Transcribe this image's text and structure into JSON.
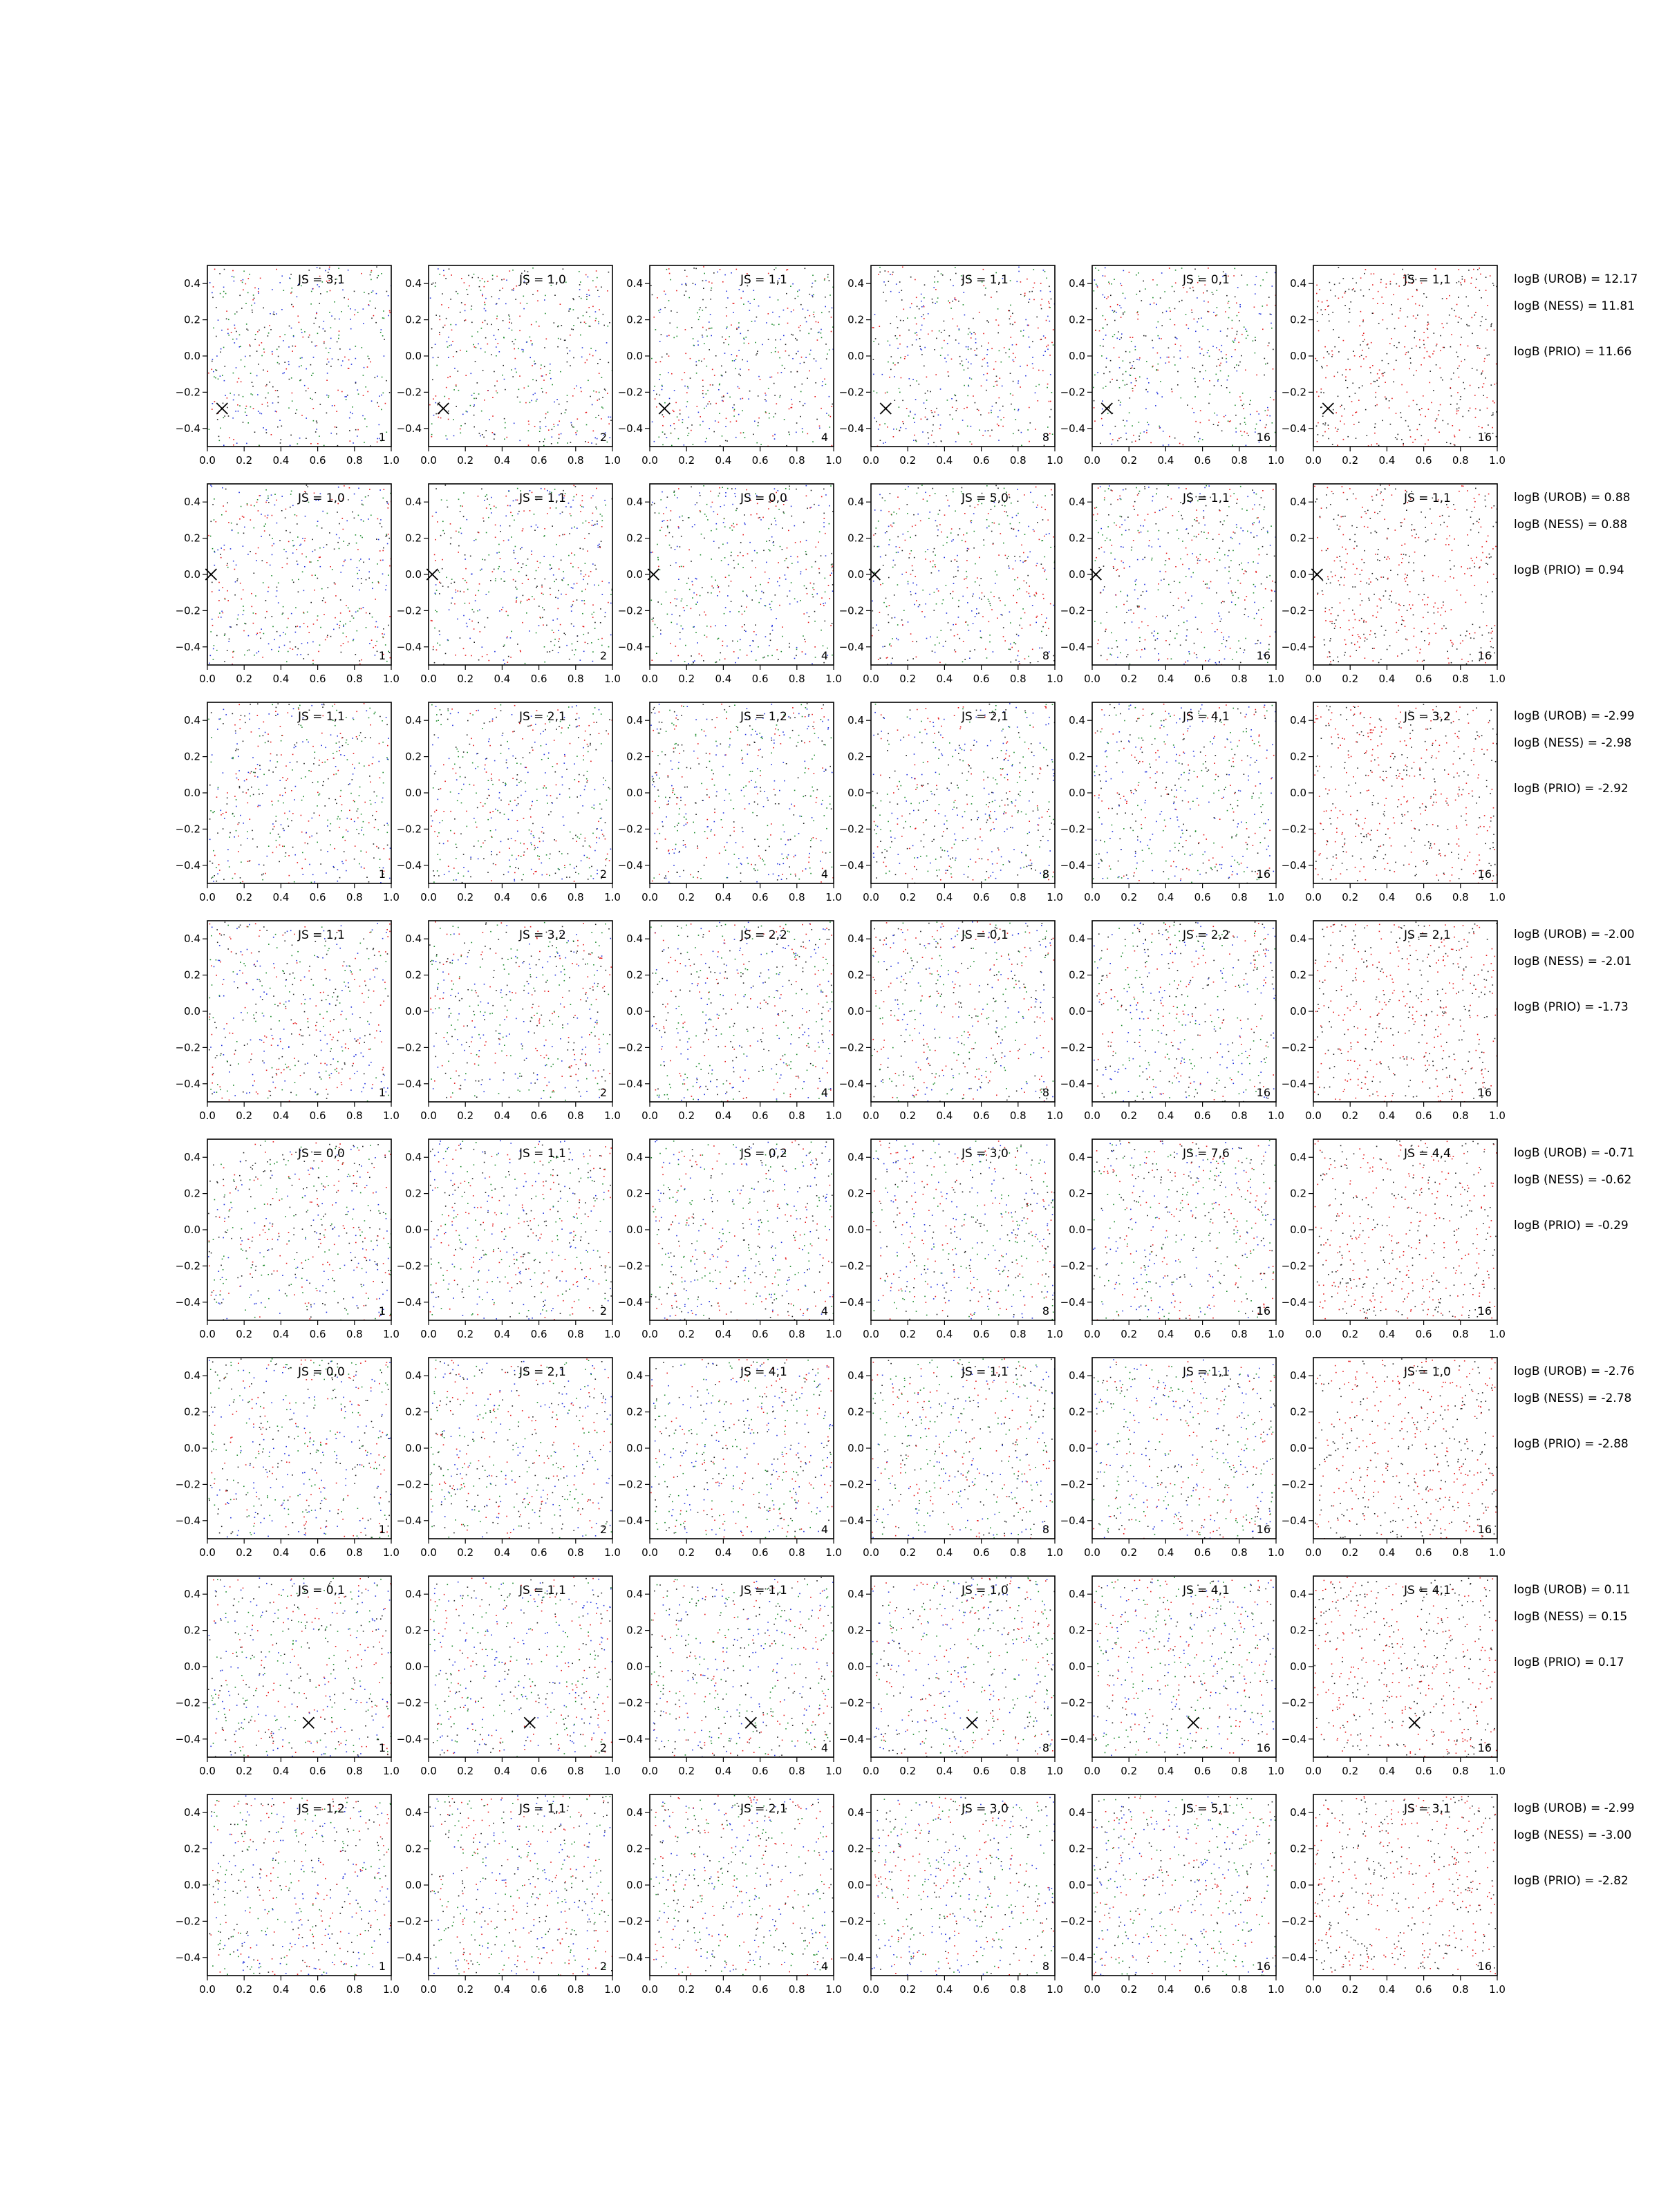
{
  "chart_data": {
    "type": "scatter",
    "layout": {
      "rows": 8,
      "columns": 6
    },
    "xlim": [
      0.0,
      1.0
    ],
    "ylim": [
      -0.5,
      0.5
    ],
    "xticks": [
      "0.0",
      "0.2",
      "0.4",
      "0.6",
      "0.8",
      "1.0"
    ],
    "yticks": [
      "0.4",
      "0.2",
      "0.0",
      "−0.2",
      "−0.4"
    ],
    "xtick_values": [
      0.0,
      0.2,
      0.4,
      0.6,
      0.8,
      1.0
    ],
    "ytick_values": [
      0.4,
      0.2,
      0.0,
      -0.2,
      -0.4
    ],
    "column_corner_labels": [
      "1",
      "2",
      "4",
      "8",
      "16",
      "16"
    ],
    "colors": {
      "red": "#e41a1c",
      "blue": "#2233dd",
      "green": "#1a8a2a",
      "black": "#222222",
      "marker": "#000000"
    },
    "column_palettes": [
      [
        "red",
        "blue",
        "green",
        "black"
      ],
      [
        "red",
        "blue",
        "green",
        "black"
      ],
      [
        "red",
        "blue",
        "green",
        "black"
      ],
      [
        "red",
        "blue",
        "green",
        "black"
      ],
      [
        "red",
        "blue",
        "green",
        "black"
      ],
      [
        "red",
        "black"
      ]
    ],
    "rows": [
      {
        "js": [
          "JS = 3,1",
          "JS = 1,0",
          "JS = 1,1",
          "JS = 1,1",
          "JS = 0,1",
          "JS = 1,1"
        ],
        "marker": {
          "x": 0.08,
          "y": -0.29,
          "columns": [
            0,
            1,
            2,
            3,
            4,
            5
          ]
        },
        "logB": [
          "logB (UROB) = 12.17",
          "logB (NESS) = 11.81",
          "logB (PRIO) = 11.66"
        ]
      },
      {
        "js": [
          "JS = 1,0",
          "JS = 1,1",
          "JS = 0,0",
          "JS = 5,0",
          "JS = 1,1",
          "JS = 1,1"
        ],
        "marker": {
          "x": 0.02,
          "y": 0.0,
          "columns": [
            0,
            1,
            2,
            3,
            4,
            5
          ]
        },
        "logB": [
          "logB (UROB) = 0.88",
          "logB (NESS) = 0.88",
          "logB (PRIO) = 0.94"
        ]
      },
      {
        "js": [
          "JS = 1,1",
          "JS = 2,1",
          "JS = 1,2",
          "JS = 2,1",
          "JS = 4,1",
          "JS = 3,2"
        ],
        "marker": null,
        "logB": [
          "logB (UROB) = -2.99",
          "logB (NESS) = -2.98",
          "logB (PRIO) = -2.92"
        ]
      },
      {
        "js": [
          "JS = 1,1",
          "JS = 3,2",
          "JS = 2,2",
          "JS = 0,1",
          "JS = 2,2",
          "JS = 2,1"
        ],
        "marker": null,
        "logB": [
          "logB (UROB) = -2.00",
          "logB (NESS) = -2.01",
          "logB (PRIO) = -1.73"
        ]
      },
      {
        "js": [
          "JS = 0,0",
          "JS = 1,1",
          "JS = 0,2",
          "JS = 3,0",
          "JS = 7,6",
          "JS = 4,4"
        ],
        "marker": null,
        "logB": [
          "logB (UROB) = -0.71",
          "logB (NESS) = -0.62",
          "logB (PRIO) = -0.29"
        ]
      },
      {
        "js": [
          "JS = 0,0",
          "JS = 2,1",
          "JS = 4,1",
          "JS = 1,1",
          "JS = 1,1",
          "JS = 1,0"
        ],
        "marker": null,
        "logB": [
          "logB (UROB) = -2.76",
          "logB (NESS) = -2.78",
          "logB (PRIO) = -2.88"
        ]
      },
      {
        "js": [
          "JS = 0,1",
          "JS = 1,1",
          "JS = 1,1",
          "JS = 1,0",
          "JS = 4,1",
          "JS = 4,1"
        ],
        "marker": {
          "x": 0.55,
          "y": -0.31,
          "columns": [
            0,
            1,
            2,
            3,
            4,
            5
          ]
        },
        "logB": [
          "logB (UROB) = 0.11",
          "logB (NESS) = 0.15",
          "logB (PRIO) = 0.17"
        ]
      },
      {
        "js": [
          "JS = 1,2",
          "JS = 1,1",
          "JS = 2,1",
          "JS = 3,0",
          "JS = 5,1",
          "JS = 3,1"
        ],
        "marker": null,
        "logB": [
          "logB (UROB) = -2.99",
          "logB (NESS) = -3.00",
          "logB (PRIO) = -2.82"
        ]
      }
    ]
  }
}
